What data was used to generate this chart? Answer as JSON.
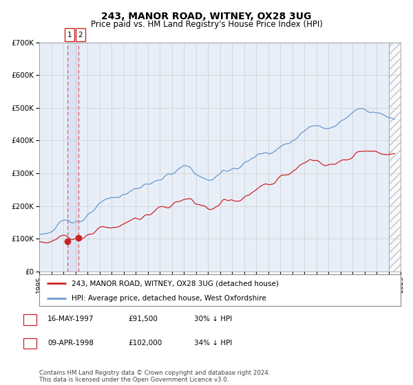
{
  "title": "243, MANOR ROAD, WITNEY, OX28 3UG",
  "subtitle": "Price paid vs. HM Land Registry's House Price Index (HPI)",
  "legend_line1": "243, MANOR ROAD, WITNEY, OX28 3UG (detached house)",
  "legend_line2": "HPI: Average price, detached house, West Oxfordshire",
  "transaction1_date": "16-MAY-1997",
  "transaction1_price": 91500,
  "transaction1_label": "30% ↓ HPI",
  "transaction2_date": "09-APR-1998",
  "transaction2_price": 102000,
  "transaction2_label": "34% ↓ HPI",
  "t1_year": 1997.37,
  "t2_year": 1998.27,
  "footer": "Contains HM Land Registry data © Crown copyright and database right 2024.\nThis data is licensed under the Open Government Licence v3.0.",
  "hpi_color": "#6699cc",
  "price_color": "#cc2222",
  "marker_color": "#cc2222",
  "vline_color": "#ee5555",
  "background_color": "#e8eef8",
  "ylim": [
    0,
    700000
  ],
  "yticks": [
    0,
    100000,
    200000,
    300000,
    400000,
    500000,
    600000,
    700000
  ],
  "xmin": 1995,
  "xmax": 2025,
  "hatch_start": 2024.0
}
